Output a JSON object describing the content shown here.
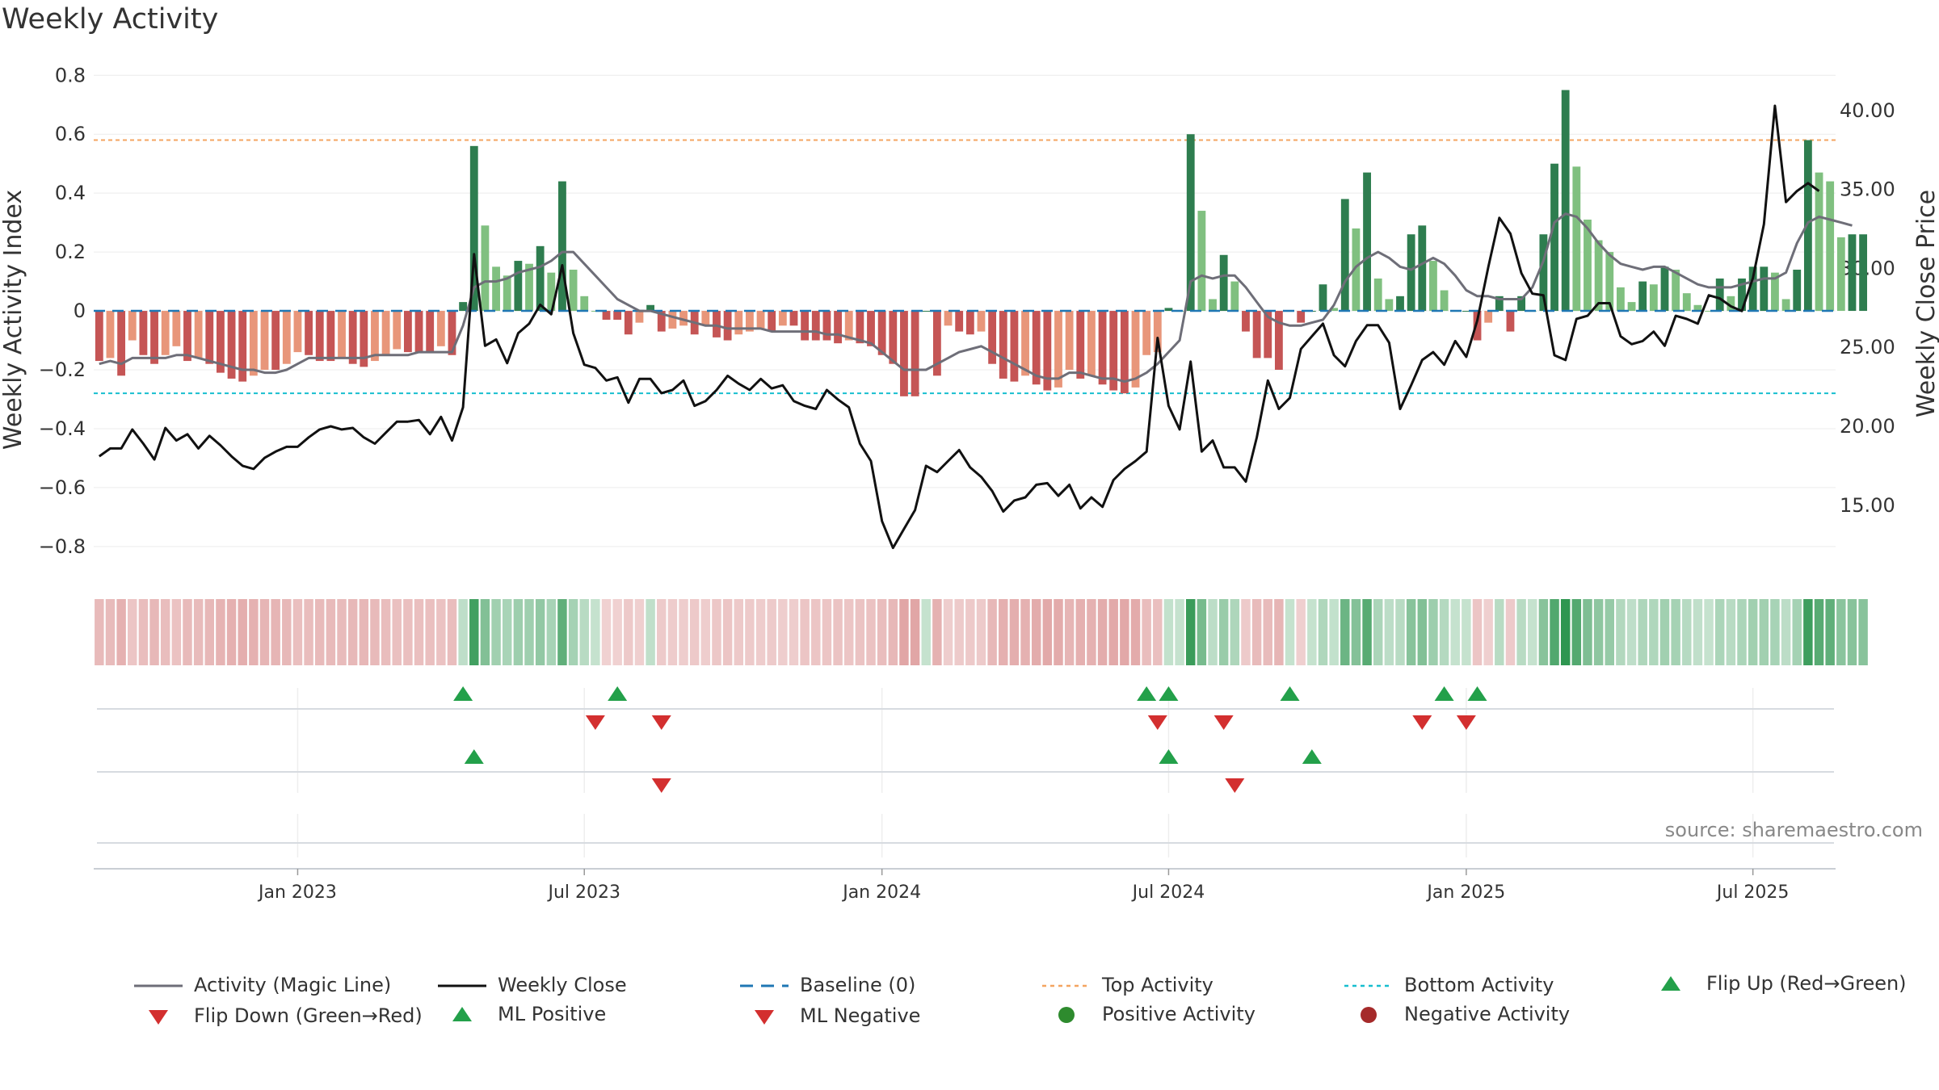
{
  "title": "Weekly Activity",
  "source": "source: sharemaestro.com",
  "colors": {
    "pos_strong": "#2e7d4f",
    "pos_light": "#80c080",
    "neg_strong": "#c55555",
    "neg_light": "#e8967a",
    "magic": "#6e6e78",
    "close": "#111111",
    "baseline": "#1f77b4",
    "top": "#f4a460",
    "bottom": "#17becf",
    "up": "#23a04a",
    "down": "#d32f2f",
    "pos_dot": "#2e8b2e",
    "neg_dot": "#a52a2a"
  },
  "chart_data": {
    "type": "bar",
    "title": "Weekly Activity",
    "ylabel": "Weekly Activity Index",
    "y2label": "Weekly Close Price",
    "ylim": [
      -0.88,
      0.82
    ],
    "y2lim": [
      10.9,
      42.6
    ],
    "yticks": [
      "0.8",
      "0.6",
      "0.4",
      "0.2",
      "0",
      "−0.2",
      "−0.4",
      "−0.6",
      "−0.8"
    ],
    "yticks_values": [
      0.8,
      0.6,
      0.4,
      0.2,
      0,
      -0.2,
      -0.4,
      -0.6,
      -0.8
    ],
    "y2ticks": [
      "40.00",
      "35.00",
      "30.00",
      "25.00",
      "20.00",
      "15.00"
    ],
    "y2ticks_values": [
      40,
      35,
      30,
      25,
      20,
      15
    ],
    "xticks": [
      "Jan 2023",
      "Jul 2023",
      "Jan 2024",
      "Jul 2024",
      "Jan 2025",
      "Jul 2025"
    ],
    "xticks_weeks": [
      18,
      44,
      71,
      97,
      124,
      150
    ],
    "x_weeks": 158,
    "top_activity": 0.58,
    "bottom_activity": -0.28,
    "activity": [
      -0.17,
      -0.16,
      -0.22,
      -0.1,
      -0.15,
      -0.18,
      -0.15,
      -0.12,
      -0.17,
      -0.16,
      -0.18,
      -0.21,
      -0.23,
      -0.24,
      -0.22,
      -0.2,
      -0.2,
      -0.18,
      -0.14,
      -0.15,
      -0.17,
      -0.17,
      -0.16,
      -0.18,
      -0.19,
      -0.17,
      -0.15,
      -0.13,
      -0.14,
      -0.14,
      -0.14,
      -0.12,
      -0.15,
      0.03,
      0.56,
      0.29,
      0.15,
      0.12,
      0.17,
      0.16,
      0.22,
      0.13,
      0.44,
      0.14,
      0.05,
      0.0,
      -0.03,
      -0.03,
      -0.08,
      -0.04,
      0.02,
      -0.07,
      -0.06,
      -0.05,
      -0.08,
      -0.05,
      -0.09,
      -0.1,
      -0.08,
      -0.07,
      -0.06,
      -0.07,
      -0.05,
      -0.05,
      -0.1,
      -0.1,
      -0.1,
      -0.11,
      -0.1,
      -0.11,
      -0.12,
      -0.15,
      -0.18,
      -0.29,
      -0.29,
      0.0,
      -0.22,
      -0.05,
      -0.07,
      -0.08,
      -0.07,
      -0.18,
      -0.23,
      -0.24,
      -0.22,
      -0.25,
      -0.27,
      -0.26,
      -0.2,
      -0.23,
      -0.22,
      -0.25,
      -0.27,
      -0.28,
      -0.26,
      -0.15,
      -0.14,
      0.01,
      0.0,
      0.6,
      0.34,
      0.04,
      0.19,
      0.1,
      -0.07,
      -0.16,
      -0.16,
      -0.2,
      0.0,
      -0.04,
      0.0,
      0.09,
      0.01,
      0.38,
      0.28,
      0.47,
      0.11,
      0.04,
      0.05,
      0.26,
      0.29,
      0.17,
      0.07,
      0.0,
      0.0,
      -0.1,
      -0.04,
      0.05,
      -0.07,
      0.05,
      0.0,
      0.26,
      0.5,
      0.75,
      0.49,
      0.31,
      0.24,
      0.2,
      0.08,
      0.03,
      0.1,
      0.09,
      0.15,
      0.14,
      0.06,
      0.02,
      0.0,
      0.11,
      0.05,
      0.11,
      0.15,
      0.15,
      0.13,
      0.04,
      0.14,
      0.58,
      0.47,
      0.44,
      0.25,
      0.26,
      0.26
    ],
    "magic_line": [
      -0.18,
      -0.17,
      -0.18,
      -0.16,
      -0.16,
      -0.16,
      -0.16,
      -0.15,
      -0.15,
      -0.16,
      -0.17,
      -0.18,
      -0.19,
      -0.2,
      -0.2,
      -0.21,
      -0.21,
      -0.2,
      -0.18,
      -0.16,
      -0.16,
      -0.16,
      -0.16,
      -0.16,
      -0.16,
      -0.15,
      -0.15,
      -0.15,
      -0.15,
      -0.14,
      -0.14,
      -0.14,
      -0.14,
      -0.05,
      0.08,
      0.1,
      0.1,
      0.11,
      0.13,
      0.14,
      0.15,
      0.17,
      0.2,
      0.2,
      0.16,
      0.12,
      0.08,
      0.04,
      0.02,
      0.0,
      0.0,
      -0.01,
      -0.02,
      -0.03,
      -0.04,
      -0.05,
      -0.05,
      -0.06,
      -0.06,
      -0.06,
      -0.06,
      -0.07,
      -0.07,
      -0.07,
      -0.07,
      -0.07,
      -0.08,
      -0.08,
      -0.09,
      -0.1,
      -0.11,
      -0.14,
      -0.17,
      -0.2,
      -0.2,
      -0.2,
      -0.18,
      -0.16,
      -0.14,
      -0.13,
      -0.12,
      -0.14,
      -0.16,
      -0.18,
      -0.2,
      -0.22,
      -0.23,
      -0.23,
      -0.21,
      -0.21,
      -0.22,
      -0.23,
      -0.23,
      -0.24,
      -0.23,
      -0.21,
      -0.18,
      -0.14,
      -0.1,
      0.1,
      0.12,
      0.11,
      0.12,
      0.12,
      0.08,
      0.03,
      -0.02,
      -0.04,
      -0.05,
      -0.05,
      -0.04,
      -0.03,
      0.02,
      0.1,
      0.15,
      0.18,
      0.2,
      0.18,
      0.15,
      0.14,
      0.16,
      0.18,
      0.16,
      0.12,
      0.07,
      0.05,
      0.05,
      0.04,
      0.04,
      0.04,
      0.08,
      0.17,
      0.3,
      0.33,
      0.32,
      0.28,
      0.23,
      0.19,
      0.16,
      0.15,
      0.14,
      0.15,
      0.15,
      0.13,
      0.11,
      0.09,
      0.08,
      0.08,
      0.08,
      0.09,
      0.1,
      0.11,
      0.11,
      0.13,
      0.23,
      0.3,
      0.32,
      0.31,
      0.3,
      0.29
    ],
    "weekly_close": [
      18.1,
      18.6,
      18.6,
      19.8,
      18.9,
      17.9,
      19.9,
      19.1,
      19.5,
      18.6,
      19.4,
      18.8,
      18.1,
      17.5,
      17.3,
      18.0,
      18.4,
      18.7,
      18.7,
      19.3,
      19.8,
      20.0,
      19.8,
      19.9,
      19.3,
      18.9,
      19.6,
      20.3,
      20.3,
      20.4,
      19.5,
      20.6,
      19.1,
      21.2,
      30.9,
      25.1,
      25.5,
      24.0,
      25.9,
      26.5,
      27.7,
      27.1,
      30.2,
      25.9,
      23.9,
      23.7,
      22.9,
      23.1,
      21.5,
      23.0,
      23.0,
      22.1,
      22.3,
      22.9,
      21.3,
      21.6,
      22.3,
      23.2,
      22.7,
      22.3,
      23.0,
      22.4,
      22.6,
      21.6,
      21.3,
      21.1,
      22.3,
      21.7,
      21.2,
      18.9,
      17.8,
      14.0,
      12.3,
      13.5,
      14.7,
      17.5,
      17.1,
      17.8,
      18.5,
      17.4,
      16.8,
      15.9,
      14.6,
      15.3,
      15.5,
      16.3,
      16.4,
      15.6,
      16.3,
      14.8,
      15.5,
      14.9,
      16.6,
      17.3,
      17.8,
      18.4,
      25.6,
      21.3,
      19.8,
      24.1,
      18.4,
      19.1,
      17.4,
      17.4,
      16.5,
      19.3,
      22.9,
      21.1,
      21.8,
      24.9,
      25.7,
      26.5,
      24.5,
      23.8,
      25.4,
      26.4,
      26.4,
      25.3,
      21.1,
      22.6,
      24.2,
      24.7,
      23.9,
      25.4,
      24.4,
      26.7,
      30.1,
      33.2,
      32.2,
      29.7,
      28.4,
      28.3,
      24.5,
      24.2,
      26.8,
      27.0,
      27.8,
      27.8,
      25.7,
      25.2,
      25.4,
      26.0,
      25.1,
      27.0,
      26.8,
      26.5,
      28.3,
      28.1,
      27.6,
      27.3,
      29.4,
      32.8,
      40.3,
      34.2,
      34.9,
      35.4,
      34.9
    ],
    "ml_flip_up": [
      33,
      47,
      95,
      97,
      108,
      122,
      125
    ],
    "ml_flip_down": [
      45,
      51,
      96,
      102,
      120,
      124
    ],
    "ml_positive": [
      34,
      97,
      110
    ],
    "ml_negative": [
      51,
      103
    ],
    "legend": [
      "Activity (Magic Line)",
      "Weekly Close",
      "Baseline (0)",
      "Top Activity",
      "Bottom Activity",
      "Flip Up (Red→Green)",
      "Flip Down (Green→Red)",
      "ML Positive",
      "ML Negative",
      "Positive Activity",
      "Negative Activity"
    ]
  }
}
